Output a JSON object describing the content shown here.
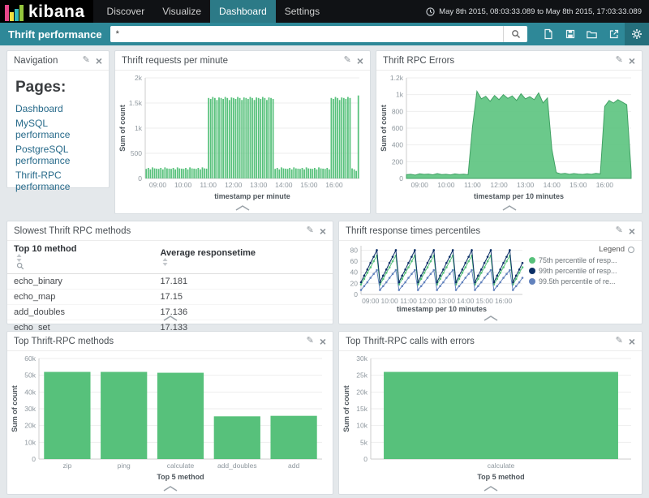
{
  "topbar": {
    "logo": "kibana",
    "tabs": [
      {
        "label": "Discover",
        "active": false
      },
      {
        "label": "Visualize",
        "active": false
      },
      {
        "label": "Dashboard",
        "active": true
      },
      {
        "label": "Settings",
        "active": false
      }
    ],
    "timerange": "May 8th 2015, 08:03:33.089 to May 8th 2015, 17:03:33.089"
  },
  "querybar": {
    "dashboard_title": "Thrift performance",
    "query_value": "*",
    "icons": [
      "new-dashboard-icon",
      "save-dashboard-icon",
      "load-dashboard-icon",
      "share-dashboard-icon",
      "gear-icon"
    ]
  },
  "colors": {
    "accent_teal": "#2e8898",
    "chart_green": "#57c17b",
    "percentile_navy": "#0b2f66",
    "percentile_blue": "#6282bd"
  },
  "panels": {
    "navigation": {
      "title": "Navigation",
      "heading": "Pages:",
      "pages": [
        "Dashboard",
        "MySQL performance",
        "PostgreSQL performance",
        "Thrift-RPC performance"
      ]
    },
    "requests": {
      "title": "Thrift requests per minute"
    },
    "errors": {
      "title": "Thrift RPC Errors"
    },
    "slowest": {
      "title": "Slowest Thrift RPC methods",
      "columns": [
        "Top 10 method",
        "Average responsetime"
      ],
      "rows": [
        [
          "echo_binary",
          "17.181"
        ],
        [
          "echo_map",
          "17.15"
        ],
        [
          "add_doubles",
          "17.136"
        ],
        [
          "echo_set",
          "17.133"
        ]
      ]
    },
    "percentiles": {
      "title": "Thrift response times percentiles",
      "legend_title": "Legend"
    },
    "top_methods": {
      "title": "Top Thrift-RPC methods"
    },
    "top_errors": {
      "title": "Top Thrift-RPC calls with errors"
    }
  },
  "chart_data": [
    {
      "id": "requests_per_minute",
      "type": "bar",
      "title": "Thrift requests per minute",
      "xlabel": "timestamp per minute",
      "ylabel": "Sum of count",
      "x_start": "08:30",
      "x_end": "17:00",
      "x_interval_minutes": 5,
      "xticks": [
        "09:00",
        "10:00",
        "11:00",
        "12:00",
        "13:00",
        "14:00",
        "15:00",
        "16:00"
      ],
      "ylim": [
        0,
        2000
      ],
      "yticks": [
        0,
        500,
        1000,
        1500,
        2000
      ],
      "ytick_labels": [
        "0",
        "500",
        "1k",
        "1.5k",
        "2k"
      ],
      "color": "#57c17b",
      "values": [
        190,
        210,
        180,
        220,
        200,
        195,
        190,
        210,
        180,
        220,
        200,
        195,
        190,
        210,
        180,
        220,
        200,
        195,
        190,
        210,
        180,
        220,
        200,
        195,
        190,
        210,
        180,
        220,
        200,
        195,
        1600,
        1580,
        1620,
        1600,
        1560,
        1610,
        1600,
        1580,
        1620,
        1600,
        1560,
        1610,
        1600,
        1580,
        1620,
        1600,
        1560,
        1610,
        1600,
        1580,
        1620,
        1600,
        1560,
        1610,
        1600,
        1580,
        1620,
        1600,
        1560,
        1610,
        1600,
        1580,
        190,
        210,
        180,
        220,
        200,
        195,
        190,
        210,
        180,
        220,
        200,
        195,
        190,
        210,
        180,
        220,
        200,
        195,
        190,
        210,
        180,
        220,
        200,
        195,
        190,
        210,
        180,
        1600,
        1580,
        1620,
        1600,
        1560,
        1610,
        1600,
        1580,
        1620,
        1600,
        200,
        180,
        150,
        1650
      ]
    },
    {
      "id": "rpc_errors",
      "type": "area",
      "title": "Thrift RPC Errors",
      "xlabel": "timestamp per 10 minutes",
      "ylabel": "Sum of count",
      "x_start": "08:30",
      "x_end": "17:00",
      "x_interval_minutes": 10,
      "xticks": [
        "09:00",
        "10:00",
        "11:00",
        "12:00",
        "13:00",
        "14:00",
        "15:00",
        "16:00"
      ],
      "ylim": [
        0,
        1200
      ],
      "yticks": [
        0,
        200,
        400,
        600,
        800,
        1000,
        1200
      ],
      "ytick_labels": [
        "0",
        "200",
        "400",
        "600",
        "800",
        "1k",
        "1.2k"
      ],
      "color": "#57c17b",
      "stroke": "#41a164",
      "values": [
        45,
        50,
        40,
        55,
        48,
        52,
        44,
        58,
        46,
        50,
        42,
        54,
        47,
        51,
        45,
        620,
        1040,
        950,
        980,
        920,
        990,
        940,
        1000,
        955,
        985,
        930,
        1010,
        950,
        975,
        940,
        1020,
        900,
        960,
        350,
        70,
        55,
        60,
        50,
        58,
        52,
        48,
        56,
        50,
        60,
        54,
        860,
        930,
        900,
        940,
        910,
        880,
        80
      ]
    },
    {
      "id": "percentiles",
      "type": "line",
      "title": "Thrift response times percentiles",
      "xlabel": "timestamp per 10 minutes",
      "ylabel": "",
      "x_start": "08:30",
      "x_end": "17:00",
      "x_interval_minutes": 10,
      "xticks": [
        "09:00",
        "10:00",
        "11:00",
        "12:00",
        "13:00",
        "14:00",
        "15:00",
        "16:00"
      ],
      "ylim": [
        0,
        88
      ],
      "yticks": [
        0,
        20,
        40,
        60,
        80
      ],
      "ytick_labels": [
        "0",
        "20",
        "40",
        "60",
        "80"
      ],
      "series": [
        {
          "name": "75th percentile of resp...",
          "color": "#57c17b",
          "values": [
            18,
            28,
            39,
            49,
            60,
            70,
            18,
            28,
            39,
            49,
            60,
            70,
            18,
            28,
            39,
            49,
            60,
            70,
            18,
            28,
            39,
            49,
            60,
            70,
            18,
            28,
            39,
            49,
            60,
            70,
            18,
            28,
            39,
            49,
            60,
            70,
            18,
            28,
            39,
            49,
            60,
            70,
            18,
            28,
            39,
            49,
            60,
            70,
            18,
            28,
            39,
            49
          ]
        },
        {
          "name": "99th percentile of resp...",
          "color": "#0b2f66",
          "values": [
            22,
            34,
            45,
            57,
            68,
            80,
            22,
            34,
            45,
            57,
            68,
            80,
            22,
            34,
            45,
            57,
            68,
            80,
            22,
            34,
            45,
            57,
            68,
            80,
            22,
            34,
            45,
            57,
            68,
            80,
            22,
            34,
            45,
            57,
            68,
            80,
            22,
            34,
            45,
            57,
            68,
            80,
            22,
            34,
            45,
            57,
            68,
            80,
            22,
            34,
            45,
            57
          ]
        },
        {
          "name": "99.5th percentile of re...",
          "color": "#6282bd",
          "values": [
            8,
            15,
            22,
            30,
            37,
            44,
            8,
            15,
            22,
            30,
            37,
            44,
            8,
            15,
            22,
            30,
            37,
            44,
            8,
            15,
            22,
            30,
            37,
            44,
            8,
            15,
            22,
            30,
            37,
            44,
            8,
            15,
            22,
            30,
            37,
            44,
            8,
            15,
            22,
            30,
            37,
            44,
            8,
            15,
            22,
            30,
            37,
            44,
            8,
            15,
            22,
            30
          ]
        }
      ]
    },
    {
      "id": "top_methods",
      "type": "bar",
      "title": "Top Thrift-RPC methods",
      "xlabel": "Top 5 method",
      "ylabel": "Sum of count",
      "categories": [
        "zip",
        "ping",
        "calculate",
        "add_doubles",
        "add"
      ],
      "values": [
        52000,
        52000,
        51500,
        25500,
        25800
      ],
      "ylim": [
        0,
        60000
      ],
      "yticks": [
        0,
        10000,
        20000,
        30000,
        40000,
        50000,
        60000
      ],
      "ytick_labels": [
        "0",
        "10k",
        "20k",
        "30k",
        "40k",
        "50k",
        "60k"
      ],
      "color": "#57c17b"
    },
    {
      "id": "top_errors",
      "type": "bar",
      "title": "Top Thrift-RPC calls with errors",
      "xlabel": "Top 5 method",
      "ylabel": "Sum of count",
      "categories": [
        "calculate"
      ],
      "values": [
        26000
      ],
      "ylim": [
        0,
        30000
      ],
      "yticks": [
        0,
        5000,
        10000,
        15000,
        20000,
        25000,
        30000
      ],
      "ytick_labels": [
        "0",
        "5k",
        "10k",
        "15k",
        "20k",
        "25k",
        "30k"
      ],
      "color": "#57c17b"
    }
  ]
}
